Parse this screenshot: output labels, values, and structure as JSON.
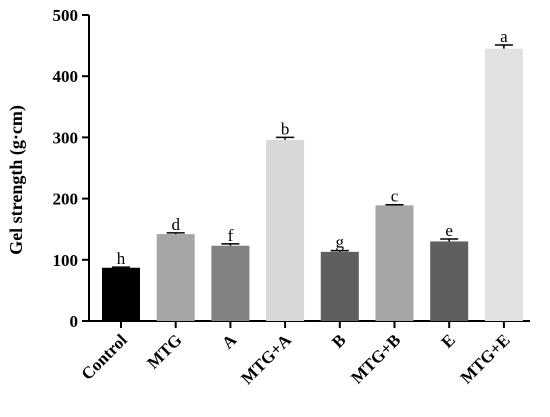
{
  "chart_data": {
    "type": "bar",
    "ylabel": "Gel strength (g·cm)",
    "xlabel": "",
    "title": "",
    "ylim": [
      0,
      500
    ],
    "yticks": [
      "0",
      "100",
      "200",
      "300",
      "400",
      "500"
    ],
    "grid": false,
    "legend": "none",
    "categories": [
      "Control",
      "MTG",
      "A",
      "MTG+A",
      "B",
      "MTG+B",
      "E",
      "MTG+E"
    ],
    "values": [
      87,
      142,
      123,
      296,
      113,
      189,
      130,
      445
    ],
    "errors": [
      1,
      2,
      3,
      4,
      2,
      1,
      4,
      6
    ],
    "significance_labels": [
      "h",
      "d",
      "f",
      "b",
      "g",
      "c",
      "e",
      "a"
    ],
    "colors": [
      "#000000",
      "#a6a6a6",
      "#828282",
      "#d8d8d8",
      "#5f5f5f",
      "#a6a6a6",
      "#5f5f5f",
      "#e2e2e2"
    ]
  }
}
